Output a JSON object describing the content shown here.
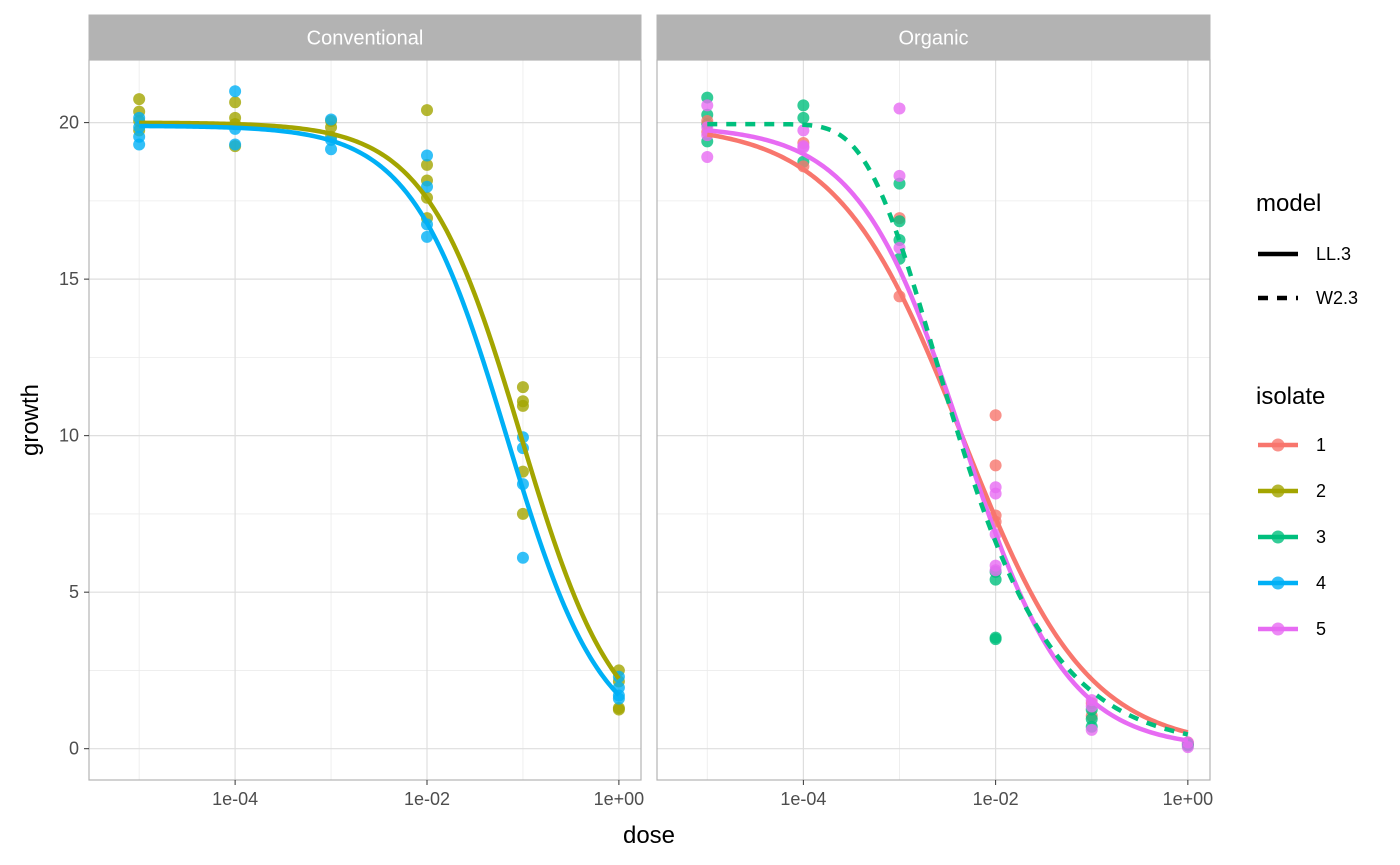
{
  "chart_data": {
    "type": "scatter",
    "xlabel": "dose",
    "ylabel": "growth",
    "x_scale": "log10",
    "xlim": [
      3e-06,
      1.7
    ],
    "ylim": [
      -1,
      22
    ],
    "x_ticks": [
      0.0001,
      0.01,
      1
    ],
    "x_tick_labels": [
      "1e-04",
      "1e-02",
      "1e+00"
    ],
    "y_ticks": [
      0,
      5,
      10,
      15,
      20
    ],
    "y_tick_labels": [
      "0",
      "5",
      "10",
      "15",
      "20"
    ],
    "grid": true,
    "legend_position": "right",
    "facets": [
      "Conventional",
      "Organic"
    ],
    "legend": {
      "model_title": "model",
      "models": [
        {
          "label": "LL.3",
          "linetype": "solid"
        },
        {
          "label": "W2.3",
          "linetype": "dashed"
        }
      ],
      "isolate_title": "isolate",
      "isolates": [
        {
          "label": "1",
          "color": "#F8766D"
        },
        {
          "label": "2",
          "color": "#A3A500"
        },
        {
          "label": "3",
          "color": "#00BF7D"
        },
        {
          "label": "4",
          "color": "#00B0F6"
        },
        {
          "label": "5",
          "color": "#E76BF3"
        }
      ]
    },
    "panels": [
      {
        "name": "Conventional",
        "curves": [
          {
            "isolate": "2",
            "model": "LL.3",
            "d": 20.0,
            "e": 0.095,
            "b": 0.88
          },
          {
            "isolate": "4",
            "model": "LL.3",
            "d": 19.9,
            "e": 0.068,
            "b": 0.88
          }
        ],
        "points": [
          {
            "isolate": "2",
            "x": 1e-05,
            "y": [
              20.75,
              20.35,
              20.05,
              19.75
            ]
          },
          {
            "isolate": "4",
            "x": 1e-05,
            "y": [
              20.15,
              19.85,
              19.55,
              19.3
            ]
          },
          {
            "isolate": "2",
            "x": 0.0001,
            "y": [
              20.65,
              20.15,
              19.95,
              19.25
            ]
          },
          {
            "isolate": "4",
            "x": 0.0001,
            "y": [
              21.0,
              19.8,
              19.3
            ]
          },
          {
            "isolate": "2",
            "x": 0.001,
            "y": [
              20.05,
              19.85,
              19.55
            ]
          },
          {
            "isolate": "4",
            "x": 0.001,
            "y": [
              20.1,
              19.45,
              19.15
            ]
          },
          {
            "isolate": "2",
            "x": 0.01,
            "y": [
              20.4,
              18.65,
              18.15,
              17.6,
              16.95
            ]
          },
          {
            "isolate": "4",
            "x": 0.01,
            "y": [
              18.95,
              17.95,
              16.75,
              16.35
            ]
          },
          {
            "isolate": "2",
            "x": 0.1,
            "y": [
              11.55,
              11.1,
              10.95,
              8.85,
              7.5
            ]
          },
          {
            "isolate": "4",
            "x": 0.1,
            "y": [
              9.95,
              9.6,
              8.45,
              6.1
            ]
          },
          {
            "isolate": "2",
            "x": 1.0,
            "y": [
              2.5,
              2.15,
              1.3,
              1.25
            ]
          },
          {
            "isolate": "4",
            "x": 1.0,
            "y": [
              2.3,
              1.95,
              1.7,
              1.6
            ]
          }
        ]
      },
      {
        "name": "Organic",
        "curves": [
          {
            "isolate": "1",
            "model": "LL.3",
            "d": 19.95,
            "e": 0.0045,
            "b": 0.67
          },
          {
            "isolate": "5",
            "model": "LL.3",
            "d": 19.9,
            "e": 0.0045,
            "b": 0.8
          },
          {
            "isolate": "3",
            "model": "W2.3",
            "d": 19.95,
            "e": 0.0023,
            "b": 0.62
          }
        ],
        "points": [
          {
            "isolate": "3",
            "x": 1e-05,
            "y": [
              20.8,
              20.25,
              19.95,
              19.4
            ]
          },
          {
            "isolate": "1",
            "x": 1e-05,
            "y": [
              20.05,
              19.7
            ]
          },
          {
            "isolate": "5",
            "x": 1e-05,
            "y": [
              20.55,
              19.85,
              19.6,
              18.9
            ]
          },
          {
            "isolate": "3",
            "x": 0.0001,
            "y": [
              20.55,
              20.15,
              18.75
            ]
          },
          {
            "isolate": "1",
            "x": 0.0001,
            "y": [
              18.6,
              19.35
            ]
          },
          {
            "isolate": "5",
            "x": 0.0001,
            "y": [
              19.75,
              19.25,
              19.2
            ]
          },
          {
            "isolate": "1",
            "x": 0.001,
            "y": [
              16.95,
              14.45
            ]
          },
          {
            "isolate": "3",
            "x": 0.001,
            "y": [
              18.05,
              16.85,
              16.25,
              15.65
            ]
          },
          {
            "isolate": "5",
            "x": 0.001,
            "y": [
              20.45,
              18.3,
              16.0
            ]
          },
          {
            "isolate": "1",
            "x": 0.01,
            "y": [
              10.65,
              9.05,
              7.45,
              7.25
            ]
          },
          {
            "isolate": "3",
            "x": 0.01,
            "y": [
              5.65,
              5.4,
              3.55,
              3.5
            ]
          },
          {
            "isolate": "5",
            "x": 0.01,
            "y": [
              8.35,
              8.15,
              6.85,
              5.85,
              5.7
            ]
          },
          {
            "isolate": "1",
            "x": 0.1,
            "y": [
              1.45,
              1.05
            ]
          },
          {
            "isolate": "3",
            "x": 0.1,
            "y": [
              1.25,
              0.95,
              0.7
            ]
          },
          {
            "isolate": "5",
            "x": 0.1,
            "y": [
              1.55,
              1.35,
              0.6
            ]
          },
          {
            "isolate": "1",
            "x": 1.0,
            "y": [
              0.2,
              0.15
            ]
          },
          {
            "isolate": "3",
            "x": 1.0,
            "y": [
              0.15,
              0.1
            ]
          },
          {
            "isolate": "5",
            "x": 1.0,
            "y": [
              0.2,
              0.05
            ]
          }
        ]
      }
    ]
  }
}
